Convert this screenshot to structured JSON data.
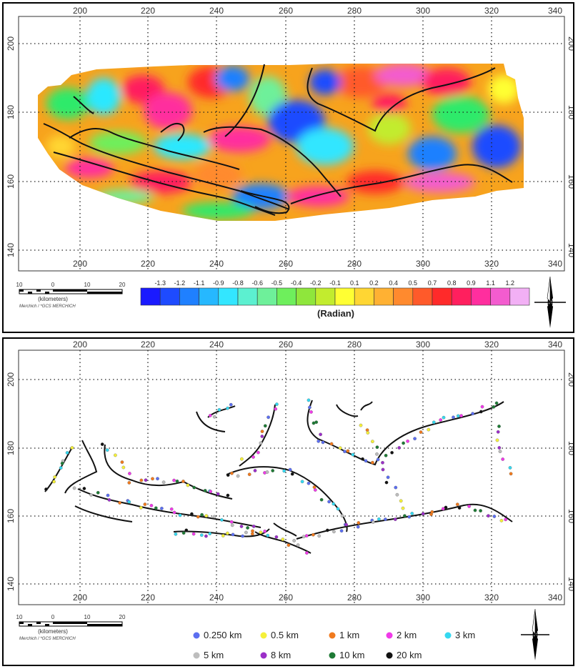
{
  "top_map": {
    "x_ticks": [
      "200",
      "220",
      "240",
      "260",
      "280",
      "300",
      "320",
      "340"
    ],
    "y_ticks": [
      "200",
      "180",
      "160",
      "140"
    ],
    "colorbar": {
      "labels": [
        "-1.3",
        "-1.2",
        "-1.1",
        "-0.9",
        "-0.8",
        "-0.6",
        "-0.5",
        "-0.4",
        "-0.2",
        "-0.1",
        "0.1",
        "0.2",
        "0.4",
        "0.5",
        "0.7",
        "0.8",
        "0.9",
        "1.1",
        "1.2"
      ],
      "colors": [
        "#1a1aff",
        "#1e4bff",
        "#1f80ff",
        "#26b8ff",
        "#33e6ff",
        "#5cf0d0",
        "#6ef09a",
        "#6eef5c",
        "#8fe63c",
        "#c2ec2e",
        "#ffff33",
        "#ffd633",
        "#ffb133",
        "#ff8a2e",
        "#ff5a2a",
        "#ff2a2a",
        "#ff1f5e",
        "#ff2e9e",
        "#f35ccf",
        "#f2b0f5"
      ],
      "title": "(Radian)"
    }
  },
  "bottom_map": {
    "x_ticks": [
      "200",
      "220",
      "240",
      "260",
      "280",
      "300",
      "320",
      "340"
    ],
    "y_ticks": [
      "200",
      "180",
      "160",
      "140"
    ],
    "legend": [
      {
        "label": "0.250 km",
        "color": "#5b6ef0"
      },
      {
        "label": "0.5 km",
        "color": "#f5f03a"
      },
      {
        "label": "1 km",
        "color": "#f07a1e"
      },
      {
        "label": "2 km",
        "color": "#f03ae8"
      },
      {
        "label": "3 km",
        "color": "#35d8f0"
      },
      {
        "label": "5 km",
        "color": "#bdbdbd"
      },
      {
        "label": "8 km",
        "color": "#9b2fc8"
      },
      {
        "label": "10 km",
        "color": "#1e7a35"
      },
      {
        "label": "20 km",
        "color": "#111111"
      }
    ]
  },
  "scale_bar": {
    "ticks": [
      "10",
      "0",
      "10",
      "20"
    ],
    "unit": "(kilometers)",
    "projection": "Merchich / *GCS MERCHICH"
  },
  "north_arrow": {
    "label": "N"
  }
}
